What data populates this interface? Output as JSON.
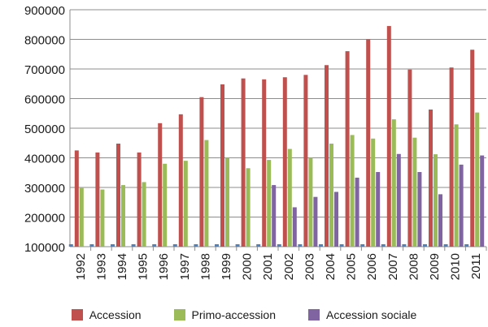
{
  "chart_data": {
    "type": "bar",
    "categories": [
      "1992",
      "1993",
      "1994",
      "1995",
      "1996",
      "1997",
      "1998",
      "1999",
      "2000",
      "2001",
      "2002",
      "2003",
      "2004",
      "2005",
      "2006",
      "2007",
      "2008",
      "2009",
      "2010",
      "2011"
    ],
    "series": [
      {
        "name": "Accession",
        "color": "#c0504d",
        "values": [
          425000,
          418000,
          448000,
          418000,
          517000,
          547000,
          605000,
          648000,
          668000,
          665000,
          672000,
          680000,
          713000,
          760000,
          800000,
          845000,
          698000,
          563000,
          705000,
          765000
        ]
      },
      {
        "name": "Primo-accession",
        "color": "#9bbb59",
        "values": [
          298000,
          293000,
          308000,
          318000,
          380000,
          390000,
          460000,
          400000,
          365000,
          393000,
          430000,
          400000,
          448000,
          477000,
          465000,
          530000,
          468000,
          412000,
          513000,
          553000
        ]
      },
      {
        "name": "Accession sociale",
        "color": "#8064a2",
        "values": [
          null,
          null,
          null,
          null,
          null,
          null,
          null,
          null,
          null,
          308000,
          233000,
          268000,
          285000,
          333000,
          352000,
          413000,
          352000,
          277000,
          377000,
          408000
        ]
      }
    ],
    "yticks": [
      "100000",
      "200000",
      "300000",
      "400000",
      "500000",
      "600000",
      "700000",
      "800000",
      "900000"
    ],
    "ylim": [
      100000,
      900000
    ],
    "grid": true,
    "legend_position": "bottom"
  }
}
